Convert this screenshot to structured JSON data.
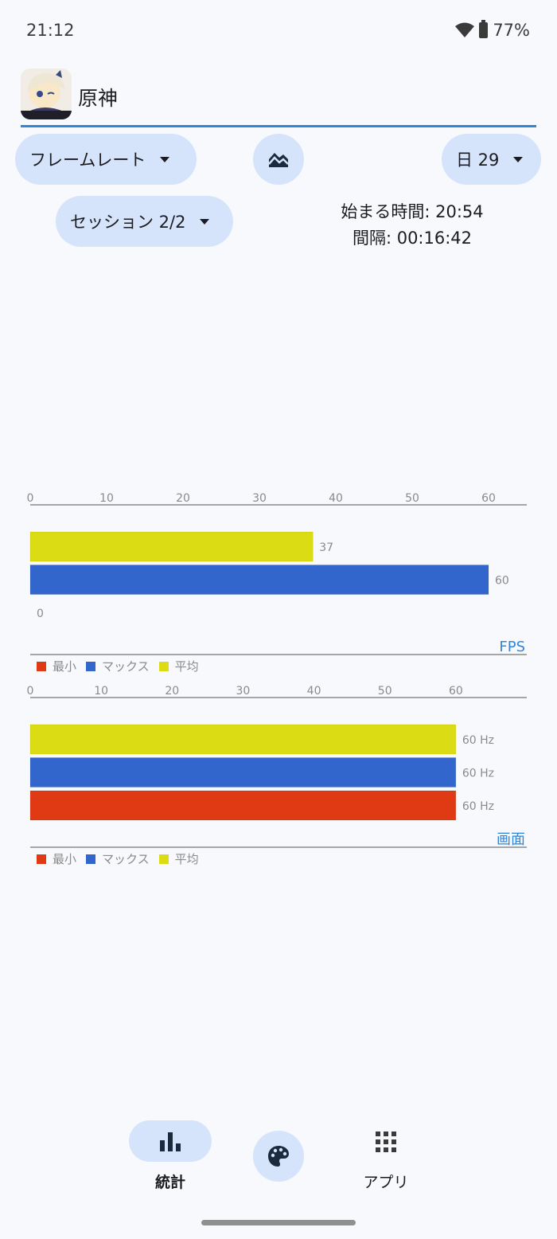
{
  "status": {
    "time": "21:12",
    "battery": "77%"
  },
  "app": {
    "title": "原神",
    "icon_brand": "HOYOVERSE"
  },
  "controls": {
    "metric_label": "フレームレート",
    "day_label": "日 29",
    "session_label": "セッション 2/2",
    "start_time": "始まる時間: 20:54",
    "duration": "間隔: 00:16:42"
  },
  "legend": {
    "min": "最小",
    "max": "マックス",
    "avg": "平均"
  },
  "colors": {
    "min": "#e03a14",
    "max": "#3266cc",
    "avg": "#dcdc14",
    "accent": "#2f86d8"
  },
  "chart_data": [
    {
      "type": "bar",
      "title": "FPS",
      "xlim": [
        0,
        65
      ],
      "ticks": [
        0,
        10,
        20,
        30,
        40,
        50,
        60
      ],
      "series": [
        {
          "name": "平均",
          "value": 37,
          "label": "37"
        },
        {
          "name": "マックス",
          "value": 60,
          "label": "60"
        },
        {
          "name": "最小",
          "value": 0,
          "label": "0"
        }
      ]
    },
    {
      "type": "bar",
      "title": "画面",
      "xlim": [
        0,
        70
      ],
      "ticks": [
        0,
        10,
        20,
        30,
        40,
        50,
        60
      ],
      "series": [
        {
          "name": "平均",
          "value": 60,
          "label": "60 Hz"
        },
        {
          "name": "マックス",
          "value": 60,
          "label": "60 Hz"
        },
        {
          "name": "最小",
          "value": 60,
          "label": "60 Hz"
        }
      ]
    }
  ],
  "nav": {
    "stats_label": "統計",
    "apps_label": "アプリ"
  },
  "icons": [
    "wifi-icon",
    "battery-icon",
    "chart-style-icon",
    "caret-down-icon",
    "bar-chart-icon",
    "palette-icon",
    "grid-icon"
  ]
}
